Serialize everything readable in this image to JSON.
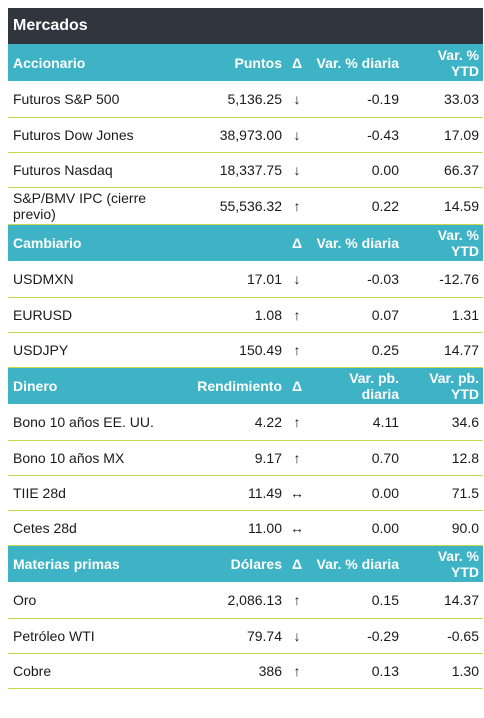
{
  "title": "Mercados",
  "colors": {
    "title_bg": "#31353e",
    "header_bg": "#3eb3c6",
    "row_border": "#c9d64a",
    "arrow_down": "#d11f2b",
    "arrow_up_green": "#2f9a3f",
    "arrow_up_red": "#d11f2b"
  },
  "accionario": {
    "header": {
      "name": "Accionario",
      "col2": "Puntos",
      "delta": "Δ",
      "col4": "Var. % diaria",
      "col5": "Var. % YTD"
    },
    "rows": [
      {
        "name": "Futuros S&P 500",
        "value": "5,136.25",
        "arrow": "↓",
        "daily": "-0.19",
        "ytd": "33.03"
      },
      {
        "name": "Futuros Dow Jones",
        "value": "38,973.00",
        "arrow": "↓",
        "daily": "-0.43",
        "ytd": "17.09"
      },
      {
        "name": "Futuros Nasdaq",
        "value": "18,337.75",
        "arrow": "↓",
        "daily": "0.00",
        "ytd": "66.37"
      },
      {
        "name": "S&P/BMV IPC (cierre previo)",
        "value": "55,536.32",
        "arrow": "↑",
        "daily": "0.22",
        "ytd": "14.59"
      }
    ]
  },
  "cambiario": {
    "header": {
      "name": "Cambiario",
      "col2": "",
      "delta": "Δ",
      "col4": "Var. % diaria",
      "col5": "Var. % YTD"
    },
    "rows": [
      {
        "name": "USDMXN",
        "value": "17.01",
        "arrow": "↓",
        "daily": "-0.03",
        "ytd": "-12.76"
      },
      {
        "name": "EURUSD",
        "value": "1.08",
        "arrow": "↑",
        "daily": "0.07",
        "ytd": "1.31"
      },
      {
        "name": "USDJPY",
        "value": "150.49",
        "arrow": "↑",
        "daily": "0.25",
        "ytd": "14.77"
      }
    ]
  },
  "dinero": {
    "header": {
      "name": "Dinero",
      "col2": "Rendimiento",
      "delta": "Δ",
      "col4": "Var. pb. diaria",
      "col5": "Var. pb. YTD"
    },
    "rows": [
      {
        "name": "Bono 10 años EE. UU.",
        "value": "4.22",
        "arrow": "↑",
        "daily": "4.11",
        "ytd": "34.6"
      },
      {
        "name": "Bono 10 años MX",
        "value": "9.17",
        "arrow": "↑",
        "daily": "0.70",
        "ytd": "12.8"
      },
      {
        "name": "TIIE 28d",
        "value": "11.49",
        "arrow": "↔",
        "daily": "0.00",
        "ytd": "71.5"
      },
      {
        "name": "Cetes 28d",
        "value": "11.00",
        "arrow": "↔",
        "daily": "0.00",
        "ytd": "90.0"
      }
    ]
  },
  "materias": {
    "header": {
      "name": "Materias primas",
      "col2": "Dólares",
      "delta": "Δ",
      "col4": "Var. % diaria",
      "col5": "Var. % YTD"
    },
    "rows": [
      {
        "name": "Oro",
        "value": "2,086.13",
        "arrow": "↑",
        "daily": "0.15",
        "ytd": "14.37"
      },
      {
        "name": "Petróleo WTI",
        "value": "79.74",
        "arrow": "↓",
        "daily": "-0.29",
        "ytd": "-0.65"
      },
      {
        "name": "Cobre",
        "value": "386",
        "arrow": "↑",
        "daily": "0.13",
        "ytd": "1.30"
      }
    ]
  }
}
